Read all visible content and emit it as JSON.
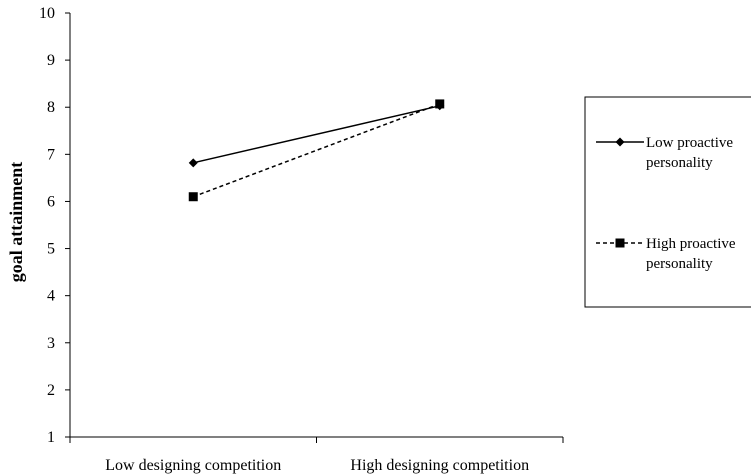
{
  "chart_data": {
    "type": "line",
    "title": "",
    "xlabel": "",
    "ylabel": "goal attainment",
    "categories": [
      "Low designing competition",
      "High designing competition"
    ],
    "ylim": [
      1,
      10
    ],
    "yticks": [
      1,
      2,
      3,
      4,
      5,
      6,
      7,
      8,
      9,
      10
    ],
    "grid": false,
    "legend_position": "right",
    "series": [
      {
        "name": "Low proactive personality",
        "name_lines": [
          "Low proactive",
          "personality"
        ],
        "values": [
          6.82,
          8.03
        ],
        "line_style": "solid",
        "marker": "diamond",
        "color": "#000000"
      },
      {
        "name": "High proactive personality",
        "name_lines": [
          "High proactive",
          "personality"
        ],
        "values": [
          6.1,
          8.07
        ],
        "line_style": "dashed",
        "marker": "square",
        "color": "#000000"
      }
    ]
  }
}
